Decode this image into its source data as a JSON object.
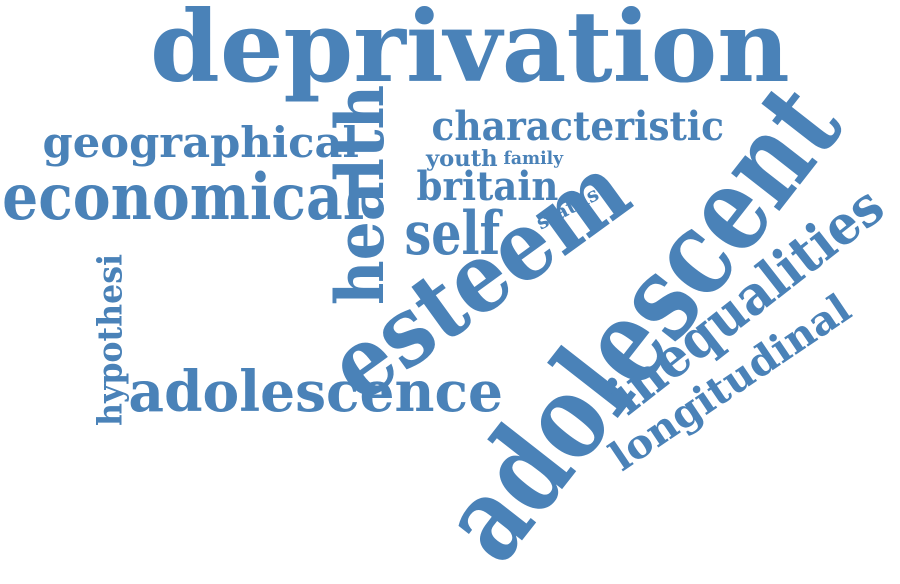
{
  "word_color": "#4a82b8",
  "background_color": "#ffffff",
  "words": [
    {
      "text": "deprivation",
      "orientation": "horizontal"
    },
    {
      "text": "characteristic",
      "orientation": "horizontal"
    },
    {
      "text": "geographical",
      "orientation": "horizontal"
    },
    {
      "text": "youth",
      "orientation": "horizontal"
    },
    {
      "text": "family",
      "orientation": "horizontal"
    },
    {
      "text": "economical",
      "orientation": "horizontal"
    },
    {
      "text": "health",
      "orientation": "vertical"
    },
    {
      "text": "britain",
      "orientation": "horizontal"
    },
    {
      "text": "status",
      "orientation": "tilted"
    },
    {
      "text": "self",
      "orientation": "horizontal"
    },
    {
      "text": "hypothesi",
      "orientation": "vertical"
    },
    {
      "text": "esteem",
      "orientation": "tilted"
    },
    {
      "text": "adolescent",
      "orientation": "tilted"
    },
    {
      "text": "inequalities",
      "orientation": "tilted"
    },
    {
      "text": "longitudinal",
      "orientation": "tilted"
    },
    {
      "text": "adolescence",
      "orientation": "horizontal"
    }
  ]
}
